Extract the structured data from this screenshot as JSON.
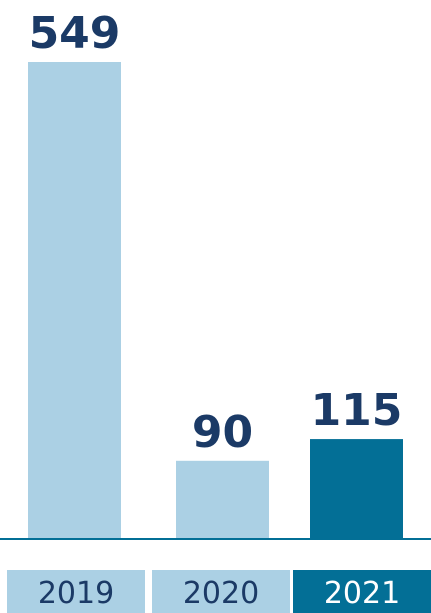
{
  "chart_data": {
    "type": "bar",
    "categories": [
      "2019",
      "2020",
      "2021"
    ],
    "values": [
      549,
      90,
      115
    ],
    "title": "",
    "xlabel": "",
    "ylabel": "",
    "ylim": [
      0,
      549
    ],
    "grid": false,
    "legend": "none",
    "highlight_index": 2
  },
  "colors": {
    "bar_default": "#abd0e4",
    "bar_highlight": "#036f96",
    "value_text": "#1b3a66",
    "category_text_default": "#1b3a66",
    "category_text_highlight": "#ffffff",
    "baseline": "#036f96"
  }
}
